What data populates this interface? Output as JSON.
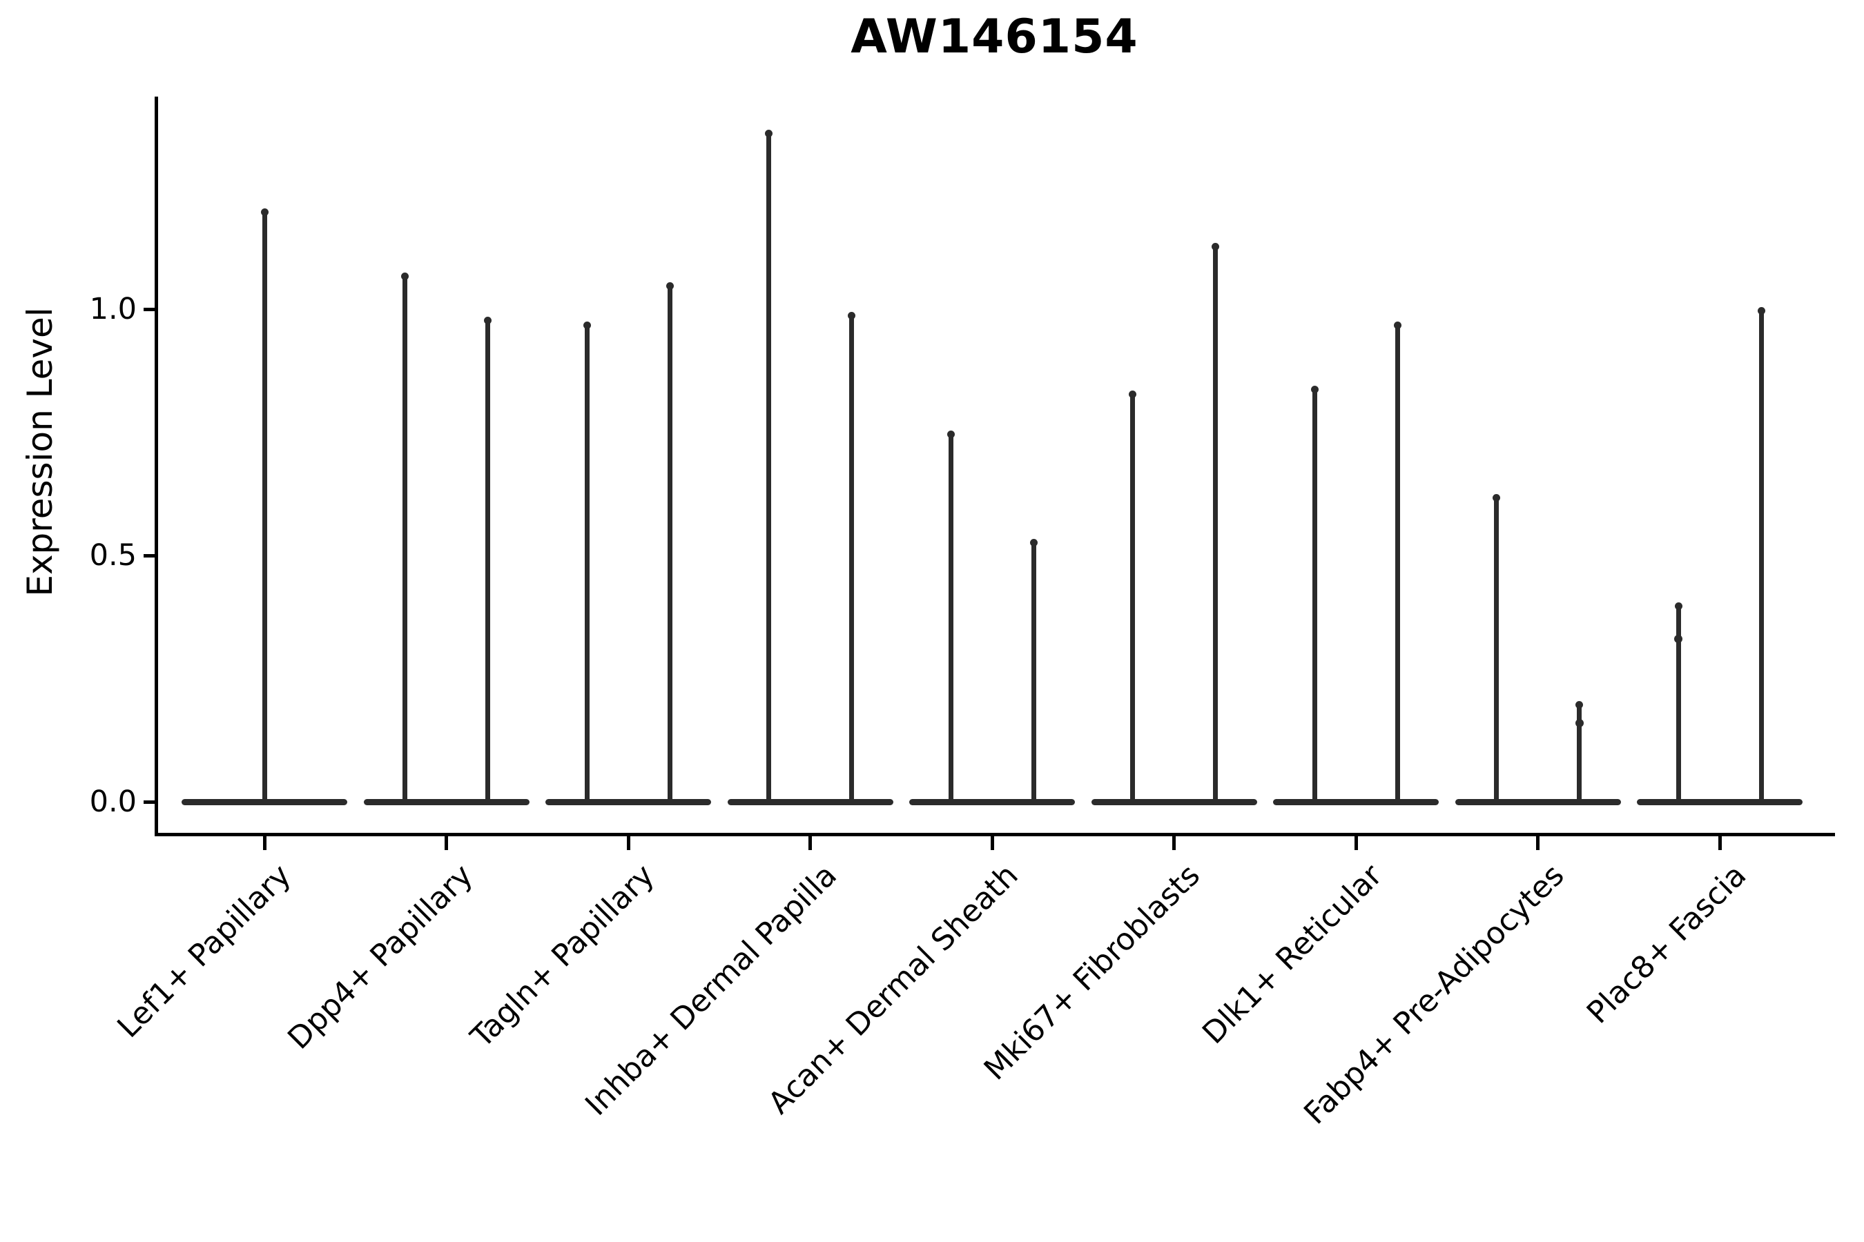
{
  "figure": {
    "title": "AW146154"
  },
  "chart_data": {
    "type": "violin",
    "title": "AW146154",
    "xlabel": "",
    "ylabel": "Expression Level",
    "ytick_labels": [
      "0.0",
      "0.5",
      "1.0"
    ],
    "ytick_values": [
      0.0,
      0.5,
      1.0
    ],
    "ylim": [
      0.0,
      1.43
    ],
    "grid": false,
    "legend": "none",
    "background": "#ffffff",
    "ink_color": "#2b2b2b",
    "text_color": "#000000",
    "categories": [
      "Lef1+ Papillary",
      "Dpp4+ Papillary",
      "Tagln+ Papillary",
      "Inhba+ Dermal Papilla",
      "Acan+ Dermal Sheath",
      "Mki67+ Fibroblasts",
      "Dlk1+ Reticular",
      "Fabp4+ Pre-Adipocytes",
      "Plac8+ Fascia"
    ],
    "violins": [
      {
        "category": "Lef1+ Papillary",
        "spikes": [
          {
            "pos": 0,
            "max": 1.2
          }
        ]
      },
      {
        "category": "Dpp4+ Papillary",
        "spikes": [
          {
            "pos": -1,
            "max": 1.07
          },
          {
            "pos": 1,
            "max": 0.98
          }
        ]
      },
      {
        "category": "Tagln+ Papillary",
        "spikes": [
          {
            "pos": -1,
            "max": 0.97
          },
          {
            "pos": 1,
            "max": 1.05
          }
        ]
      },
      {
        "category": "Inhba+ Dermal Papilla",
        "spikes": [
          {
            "pos": -1,
            "max": 1.36
          },
          {
            "pos": 1,
            "max": 0.99
          }
        ]
      },
      {
        "category": "Acan+ Dermal Sheath",
        "spikes": [
          {
            "pos": -1,
            "max": 0.75
          },
          {
            "pos": 1,
            "max": 0.53
          }
        ]
      },
      {
        "category": "Mki67+ Fibroblasts",
        "spikes": [
          {
            "pos": -1,
            "max": 0.83
          },
          {
            "pos": 1,
            "max": 1.13
          }
        ]
      },
      {
        "category": "Dlk1+ Reticular",
        "spikes": [
          {
            "pos": -1,
            "max": 0.84
          },
          {
            "pos": 1,
            "max": 0.97
          }
        ]
      },
      {
        "category": "Fabp4+ Pre-Adipocytes",
        "spikes": [
          {
            "pos": -1,
            "max": 0.62
          },
          {
            "pos": 1,
            "max": 0.2,
            "knobs": [
              0.16
            ]
          }
        ]
      },
      {
        "category": "Plac8+ Fascia",
        "spikes": [
          {
            "pos": -1,
            "max": 0.4,
            "knobs": [
              0.33
            ]
          },
          {
            "pos": 1,
            "max": 1.0
          }
        ]
      }
    ]
  }
}
